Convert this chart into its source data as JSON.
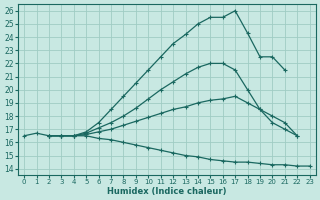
{
  "xlabel": "Humidex (Indice chaleur)",
  "xlim": [
    -0.5,
    23.5
  ],
  "ylim": [
    13.5,
    26.5
  ],
  "xticks": [
    0,
    1,
    2,
    3,
    4,
    5,
    6,
    7,
    8,
    9,
    10,
    11,
    12,
    13,
    14,
    15,
    16,
    17,
    18,
    19,
    20,
    21,
    22,
    23
  ],
  "yticks": [
    14,
    15,
    16,
    17,
    18,
    19,
    20,
    21,
    22,
    23,
    24,
    25,
    26
  ],
  "bg_color": "#c8e8e2",
  "grid_color": "#a0ccc4",
  "line_color": "#1a6860",
  "lines": [
    {
      "x": [
        0,
        1,
        2,
        3,
        4,
        5,
        6,
        7,
        8,
        9,
        10,
        11,
        12,
        13,
        14,
        15,
        16,
        17,
        18,
        19,
        20,
        21,
        22,
        23
      ],
      "y": [
        16.5,
        16.7,
        16.5,
        16.5,
        16.5,
        16.5,
        16.3,
        16.2,
        16.0,
        15.8,
        15.6,
        15.4,
        15.2,
        15.0,
        14.9,
        14.7,
        14.6,
        14.5,
        14.5,
        14.4,
        14.3,
        14.3,
        14.2,
        14.2
      ]
    },
    {
      "x": [
        2,
        3,
        4,
        5,
        6,
        7,
        8,
        9,
        10,
        11,
        12,
        13,
        14,
        15,
        16,
        17,
        18,
        19,
        20,
        21,
        22
      ],
      "y": [
        16.5,
        16.5,
        16.5,
        16.6,
        16.8,
        17.0,
        17.3,
        17.6,
        17.9,
        18.2,
        18.5,
        18.7,
        19.0,
        19.2,
        19.3,
        19.5,
        19.0,
        18.5,
        18.0,
        17.5,
        16.5
      ]
    },
    {
      "x": [
        2,
        3,
        4,
        5,
        6,
        7,
        8,
        9,
        10,
        11,
        12,
        13,
        14,
        15,
        16,
        17,
        18,
        19,
        20,
        21,
        22
      ],
      "y": [
        16.5,
        16.5,
        16.5,
        16.7,
        17.1,
        17.5,
        18.0,
        18.6,
        19.3,
        20.0,
        20.6,
        21.2,
        21.7,
        22.0,
        22.0,
        21.5,
        20.0,
        18.5,
        17.5,
        17.0,
        16.5
      ]
    },
    {
      "x": [
        2,
        3,
        4,
        5,
        6,
        7,
        8,
        9,
        10,
        11,
        12,
        13,
        14,
        15,
        16,
        17,
        18,
        19,
        20,
        21
      ],
      "y": [
        16.5,
        16.5,
        16.5,
        16.8,
        17.5,
        18.5,
        19.5,
        20.5,
        21.5,
        22.5,
        23.5,
        24.2,
        25.0,
        25.5,
        25.5,
        26.0,
        24.3,
        22.5,
        22.5,
        21.5
      ]
    }
  ]
}
